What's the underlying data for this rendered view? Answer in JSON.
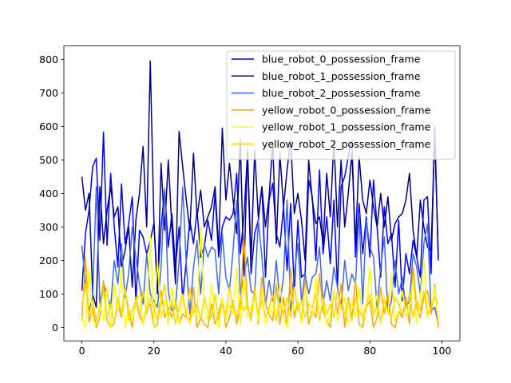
{
  "chart_data": {
    "type": "line",
    "title": "",
    "xlabel": "",
    "ylabel": "",
    "xlim": [
      -5,
      105
    ],
    "ylim": [
      -40,
      840
    ],
    "xticks": [
      0,
      20,
      40,
      60,
      80,
      100
    ],
    "yticks": [
      0,
      100,
      200,
      300,
      400,
      500,
      600,
      700,
      800
    ],
    "grid": false,
    "legend_position": "top-right",
    "x": [
      0,
      1,
      2,
      3,
      4,
      5,
      6,
      7,
      8,
      9,
      10,
      11,
      12,
      13,
      14,
      15,
      16,
      17,
      18,
      19,
      20,
      21,
      22,
      23,
      24,
      25,
      26,
      27,
      28,
      29,
      30,
      31,
      32,
      33,
      34,
      35,
      36,
      37,
      38,
      39,
      40,
      41,
      42,
      43,
      44,
      45,
      46,
      47,
      48,
      49,
      50,
      51,
      52,
      53,
      54,
      55,
      56,
      57,
      58,
      59,
      60,
      61,
      62,
      63,
      64,
      65,
      66,
      67,
      68,
      69,
      70,
      71,
      72,
      73,
      74,
      75,
      76,
      77,
      78,
      79,
      80,
      81,
      82,
      83,
      84,
      85,
      86,
      87,
      88,
      89,
      90,
      91,
      92,
      93,
      94,
      95,
      96,
      97,
      98,
      99
    ],
    "series": [
      {
        "name": "blue_robot_0_possession_frame",
        "color": "#0000ff",
        "values": [
          110,
          280,
          350,
          480,
          505,
          260,
          583,
          245,
          460,
          300,
          180,
          428,
          250,
          310,
          390,
          75,
          290,
          270,
          220,
          260,
          310,
          130,
          300,
          410,
          240,
          340,
          180,
          300,
          80,
          200,
          320,
          250,
          350,
          210,
          240,
          320,
          260,
          400,
          210,
          300,
          330,
          320,
          340,
          460,
          220,
          330,
          520,
          160,
          280,
          320,
          420,
          150,
          380,
          430,
          280,
          240,
          360,
          170,
          370,
          110,
          320,
          150,
          160,
          440,
          390,
          200,
          470,
          220,
          330,
          190,
          380,
          120,
          420,
          450,
          510,
          560,
          210,
          370,
          220,
          330,
          210,
          440,
          300,
          150,
          360,
          250,
          280,
          120,
          320,
          80,
          220,
          160,
          260,
          210,
          150,
          380,
          390,
          160,
          600,
          200
        ]
      },
      {
        "name": "blue_robot_1_possession_frame",
        "color": "#00008b",
        "values": [
          450,
          350,
          400,
          100,
          60,
          420,
          250,
          350,
          420,
          330,
          360,
          180,
          230,
          300,
          120,
          320,
          400,
          540,
          300,
          795,
          320,
          100,
          490,
          290,
          500,
          300,
          130,
          585,
          480,
          380,
          290,
          520,
          330,
          410,
          300,
          330,
          360,
          420,
          230,
          595,
          380,
          490,
          380,
          280,
          560,
          150,
          530,
          200,
          530,
          330,
          420,
          300,
          390,
          550,
          250,
          520,
          360,
          470,
          560,
          340,
          400,
          320,
          200,
          500,
          380,
          310,
          330,
          250,
          460,
          330,
          560,
          300,
          500,
          300,
          400,
          520,
          250,
          510,
          380,
          340,
          440,
          360,
          300,
          400,
          300,
          390,
          260,
          310,
          330,
          340,
          380,
          460,
          290,
          210,
          380,
          300,
          240,
          230,
          580,
          210
        ]
      },
      {
        "name": "blue_robot_2_possession_frame",
        "color": "#4169e1",
        "values": [
          245,
          130,
          50,
          90,
          420,
          70,
          130,
          100,
          60,
          200,
          130,
          250,
          90,
          160,
          300,
          210,
          130,
          70,
          220,
          100,
          80,
          60,
          180,
          415,
          110,
          50,
          60,
          200,
          420,
          190,
          40,
          180,
          260,
          100,
          250,
          210,
          240,
          230,
          100,
          280,
          150,
          110,
          230,
          380,
          100,
          150,
          210,
          110,
          100,
          320,
          210,
          70,
          140,
          80,
          200,
          70,
          150,
          380,
          50,
          160,
          250,
          80,
          160,
          100,
          150,
          160,
          240,
          70,
          140,
          80,
          180,
          120,
          60,
          200,
          110,
          160,
          130,
          340,
          70,
          320,
          240,
          210,
          60,
          180,
          270,
          40,
          80,
          200,
          100,
          150,
          60,
          80,
          220,
          180,
          100,
          250,
          310,
          50,
          60,
          10
        ]
      },
      {
        "name": "yellow_robot_0_possession_frame",
        "color": "#ffa500",
        "values": [
          20,
          210,
          15,
          60,
          0,
          30,
          140,
          20,
          0,
          15,
          70,
          30,
          110,
          50,
          0,
          90,
          40,
          10,
          60,
          70,
          0,
          10,
          110,
          30,
          60,
          30,
          80,
          10,
          40,
          30,
          20,
          120,
          0,
          30,
          10,
          0,
          70,
          10,
          40,
          90,
          0,
          30,
          80,
          10,
          60,
          270,
          60,
          30,
          120,
          10,
          150,
          70,
          40,
          20,
          130,
          10,
          90,
          0,
          180,
          30,
          80,
          20,
          140,
          10,
          50,
          30,
          160,
          50,
          20,
          0,
          110,
          40,
          130,
          0,
          90,
          30,
          140,
          10,
          0,
          60,
          80,
          0,
          30,
          120,
          40,
          100,
          10,
          0,
          50,
          30,
          90,
          10,
          180,
          60,
          30,
          90,
          110,
          40,
          130,
          0
        ]
      },
      {
        "name": "yellow_robot_1_possession_frame",
        "color": "#ffff00",
        "values": [
          30,
          0,
          180,
          20,
          10,
          70,
          20,
          120,
          0,
          130,
          50,
          180,
          0,
          60,
          20,
          70,
          100,
          10,
          50,
          270,
          0,
          200,
          30,
          80,
          10,
          120,
          60,
          10,
          90,
          40,
          10,
          60,
          30,
          300,
          60,
          20,
          130,
          30,
          0,
          90,
          20,
          70,
          40,
          180,
          10,
          150,
          30,
          60,
          90,
          20,
          110,
          10,
          40,
          70,
          20,
          130,
          30,
          0,
          100,
          50,
          80,
          10,
          120,
          60,
          30,
          150,
          20,
          80,
          10,
          40,
          110,
          20,
          60,
          90,
          10,
          70,
          30,
          120,
          20,
          50,
          180,
          30,
          100,
          10,
          90,
          40,
          160,
          20,
          50,
          110,
          30,
          70,
          140,
          10,
          90,
          200,
          30,
          60,
          120,
          20
        ]
      },
      {
        "name": "yellow_robot_2_possession_frame",
        "color": "#ffd700",
        "values": [
          60,
          130,
          40,
          80,
          20,
          60,
          110,
          30,
          70,
          10,
          90,
          40,
          120,
          20,
          50,
          80,
          30,
          110,
          40,
          90,
          60,
          20,
          70,
          130,
          30,
          80,
          10,
          60,
          100,
          30,
          120,
          40,
          70,
          20,
          90,
          50,
          30,
          100,
          20,
          70,
          40,
          120,
          60,
          30,
          90,
          50,
          70,
          20,
          110,
          40,
          80,
          30,
          60,
          100,
          20,
          70,
          40,
          90,
          30,
          120,
          50,
          80,
          30,
          70,
          60,
          100,
          20,
          90,
          40,
          70,
          30,
          110,
          60,
          40,
          80,
          20,
          90,
          50,
          30,
          70,
          100,
          40,
          60,
          20,
          80,
          50,
          30,
          90,
          70,
          40,
          60,
          100,
          30,
          80,
          50,
          110,
          40,
          60,
          90,
          70
        ]
      }
    ]
  }
}
